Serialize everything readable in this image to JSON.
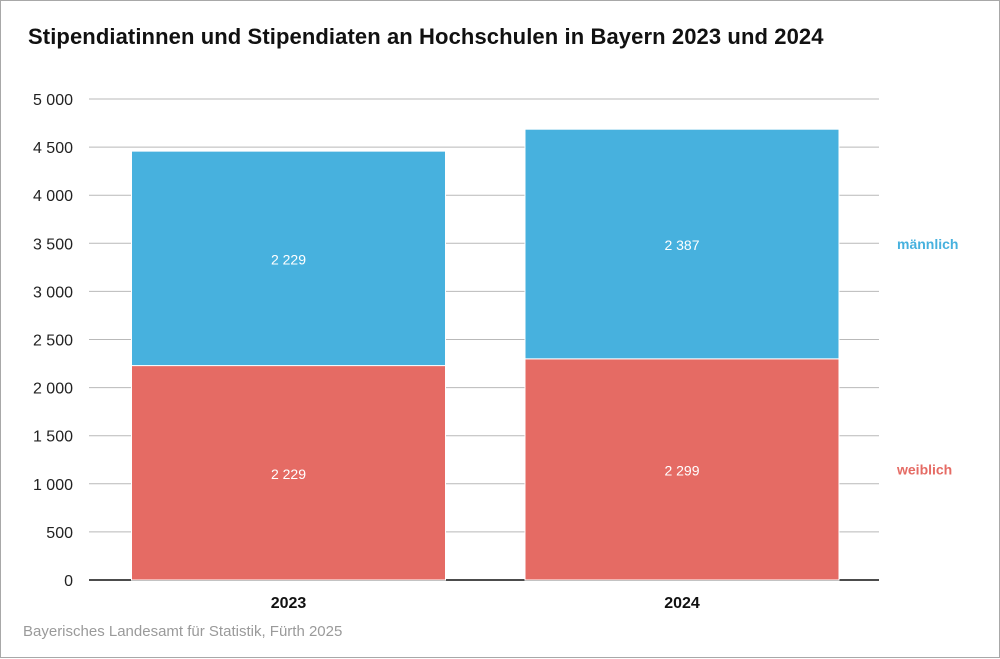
{
  "chart_data": {
    "type": "bar",
    "stacked": true,
    "title": "Stipendiatinnen und Stipendiaten an Hochschulen in Bayern 2023 und 2024",
    "categories": [
      "2023",
      "2024"
    ],
    "series": [
      {
        "name": "weiblich",
        "values": [
          2229,
          2299
        ],
        "labels": [
          "2 229",
          "2 299"
        ],
        "color": "#e56b64"
      },
      {
        "name": "männlich",
        "values": [
          2229,
          2387
        ],
        "labels": [
          "2 229",
          "2 387"
        ],
        "color": "#47b1de"
      }
    ],
    "ylim": [
      0,
      5000
    ],
    "yticks": [
      0,
      500,
      1000,
      1500,
      2000,
      2500,
      3000,
      3500,
      4000,
      4500,
      5000
    ],
    "ytick_labels": [
      "0",
      "500",
      "1 000",
      "1 500",
      "2 000",
      "2 500",
      "3 000",
      "3 500",
      "4 000",
      "4 500",
      "5 000"
    ],
    "grid": true,
    "legend_placement": "right",
    "source": "Bayerisches Landesamt für Statistik, Fürth 2025"
  }
}
